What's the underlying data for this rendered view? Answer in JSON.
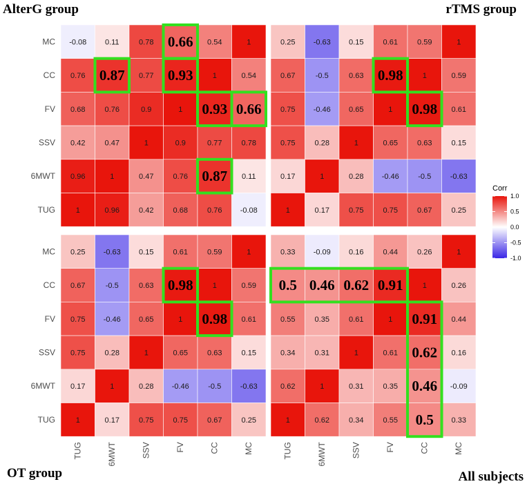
{
  "chart_data": {
    "type": "heatmap",
    "variables": [
      "TUG",
      "6MWT",
      "SSV",
      "FV",
      "CC",
      "MC"
    ],
    "legend": {
      "title": "Corr",
      "ticks": [
        "1.0",
        "0.5",
        "0.0",
        "-0.5",
        "-1.0"
      ],
      "tick_values": [
        1.0,
        0.5,
        0.0,
        -0.5,
        -1.0
      ],
      "colors": {
        "low": "#3a26e6",
        "mid": "#ffffff",
        "high": "#e8150c"
      }
    },
    "panels": [
      {
        "name": "AlterG group",
        "rows": [
          "MC",
          "CC",
          "FV",
          "SSV",
          "6MWT",
          "TUG"
        ],
        "cols": [
          "TUG",
          "6MWT",
          "SSV",
          "FV",
          "CC",
          "MC"
        ],
        "values": [
          [
            -0.08,
            0.11,
            0.78,
            0.66,
            0.54,
            1
          ],
          [
            0.76,
            0.87,
            0.77,
            0.93,
            1,
            0.54
          ],
          [
            0.68,
            0.76,
            0.9,
            1,
            0.93,
            0.66
          ],
          [
            0.42,
            0.47,
            1,
            0.9,
            0.77,
            0.78
          ],
          [
            0.96,
            1,
            0.47,
            0.76,
            0.87,
            0.11
          ],
          [
            1,
            0.96,
            0.42,
            0.68,
            0.76,
            -0.08
          ]
        ],
        "labels": [
          [
            "-0.08",
            "0.11",
            "0.78",
            "0.66",
            "0.54",
            "1"
          ],
          [
            "0.76",
            "0.87",
            "0.77",
            "0.93",
            "1",
            "0.54"
          ],
          [
            "0.68",
            "0.76",
            "0.9",
            "1",
            "0.93",
            "0.66"
          ],
          [
            "0.42",
            "0.47",
            "1",
            "0.9",
            "0.77",
            "0.78"
          ],
          [
            "0.96",
            "1",
            "0.47",
            "0.76",
            "0.87",
            "0.11"
          ],
          [
            "1",
            "0.96",
            "0.42",
            "0.68",
            "0.76",
            "-0.08"
          ]
        ],
        "highlighted_cells": [
          [
            0,
            3
          ],
          [
            1,
            1
          ],
          [
            1,
            3
          ],
          [
            2,
            4
          ],
          [
            2,
            5
          ],
          [
            4,
            4
          ]
        ]
      },
      {
        "name": "rTMS group",
        "rows": [
          "MC",
          "CC",
          "FV",
          "SSV",
          "6MWT",
          "TUG"
        ],
        "cols": [
          "TUG",
          "6MWT",
          "SSV",
          "FV",
          "CC",
          "MC"
        ],
        "values": [
          [
            0.25,
            -0.63,
            0.15,
            0.61,
            0.59,
            1
          ],
          [
            0.67,
            -0.5,
            0.63,
            0.98,
            1,
            0.59
          ],
          [
            0.75,
            -0.46,
            0.65,
            1,
            0.98,
            0.61
          ],
          [
            0.75,
            0.28,
            1,
            0.65,
            0.63,
            0.15
          ],
          [
            0.17,
            1,
            0.28,
            -0.46,
            -0.5,
            -0.63
          ],
          [
            1,
            0.17,
            0.75,
            0.75,
            0.67,
            0.25
          ]
        ],
        "labels": [
          [
            "0.25",
            "-0.63",
            "0.15",
            "0.61",
            "0.59",
            "1"
          ],
          [
            "0.67",
            "-0.5",
            "0.63",
            "0.98",
            "1",
            "0.59"
          ],
          [
            "0.75",
            "-0.46",
            "0.65",
            "1",
            "0.98",
            "0.61"
          ],
          [
            "0.75",
            "0.28",
            "1",
            "0.65",
            "0.63",
            "0.15"
          ],
          [
            "0.17",
            "1",
            "0.28",
            "-0.46",
            "-0.5",
            "-0.63"
          ],
          [
            "1",
            "0.17",
            "0.75",
            "0.75",
            "0.67",
            "0.25"
          ]
        ],
        "highlighted_cells": [
          [
            1,
            3
          ],
          [
            2,
            4
          ]
        ]
      },
      {
        "name": "OT group",
        "rows": [
          "MC",
          "CC",
          "FV",
          "SSV",
          "6MWT",
          "TUG"
        ],
        "cols": [
          "TUG",
          "6MWT",
          "SSV",
          "FV",
          "CC",
          "MC"
        ],
        "values": [
          [
            0.25,
            -0.63,
            0.15,
            0.61,
            0.59,
            1
          ],
          [
            0.67,
            -0.5,
            0.63,
            0.98,
            1,
            0.59
          ],
          [
            0.75,
            -0.46,
            0.65,
            1,
            0.98,
            0.61
          ],
          [
            0.75,
            0.28,
            1,
            0.65,
            0.63,
            0.15
          ],
          [
            0.17,
            1,
            0.28,
            -0.46,
            -0.5,
            -0.63
          ],
          [
            1,
            0.17,
            0.75,
            0.75,
            0.67,
            0.25
          ]
        ],
        "labels": [
          [
            "0.25",
            "-0.63",
            "0.15",
            "0.61",
            "0.59",
            "1"
          ],
          [
            "0.67",
            "-0.5",
            "0.63",
            "0.98",
            "1",
            "0.59"
          ],
          [
            "0.75",
            "-0.46",
            "0.65",
            "1",
            "0.98",
            "0.61"
          ],
          [
            "0.75",
            "0.28",
            "1",
            "0.65",
            "0.63",
            "0.15"
          ],
          [
            "0.17",
            "1",
            "0.28",
            "-0.46",
            "-0.5",
            "-0.63"
          ],
          [
            "1",
            "0.17",
            "0.75",
            "0.75",
            "0.67",
            "0.25"
          ]
        ],
        "highlighted_cells": [
          [
            1,
            3
          ],
          [
            2,
            4
          ]
        ]
      },
      {
        "name": "All subjects",
        "rows": [
          "MC",
          "CC",
          "FV",
          "SSV",
          "6MWT",
          "TUG"
        ],
        "cols": [
          "TUG",
          "6MWT",
          "SSV",
          "FV",
          "CC",
          "MC"
        ],
        "values": [
          [
            0.33,
            -0.09,
            0.16,
            0.44,
            0.26,
            1
          ],
          [
            0.5,
            0.46,
            0.62,
            0.91,
            1,
            0.26
          ],
          [
            0.55,
            0.35,
            0.61,
            1,
            0.91,
            0.44
          ],
          [
            0.34,
            0.31,
            1,
            0.61,
            0.62,
            0.16
          ],
          [
            0.62,
            1,
            0.31,
            0.35,
            0.46,
            -0.09
          ],
          [
            1,
            0.62,
            0.34,
            0.55,
            0.5,
            0.33
          ]
        ],
        "labels": [
          [
            "0.33",
            "-0.09",
            "0.16",
            "0.44",
            "0.26",
            "1"
          ],
          [
            "0.5",
            "0.46",
            "0.62",
            "0.91",
            "1",
            "0.26"
          ],
          [
            "0.55",
            "0.35",
            "0.61",
            "1",
            "0.91",
            "0.44"
          ],
          [
            "0.34",
            "0.31",
            "1",
            "0.61",
            "0.62",
            "0.16"
          ],
          [
            "0.62",
            "1",
            "0.31",
            "0.35",
            "0.46",
            "-0.09"
          ],
          [
            "1",
            "0.62",
            "0.34",
            "0.55",
            "0.5",
            "0.33"
          ]
        ],
        "highlighted_cells": [
          [
            1,
            0
          ],
          [
            1,
            1
          ],
          [
            1,
            2
          ],
          [
            1,
            3
          ],
          [
            2,
            4
          ],
          [
            3,
            4
          ],
          [
            4,
            4
          ],
          [
            5,
            4
          ]
        ]
      }
    ]
  }
}
